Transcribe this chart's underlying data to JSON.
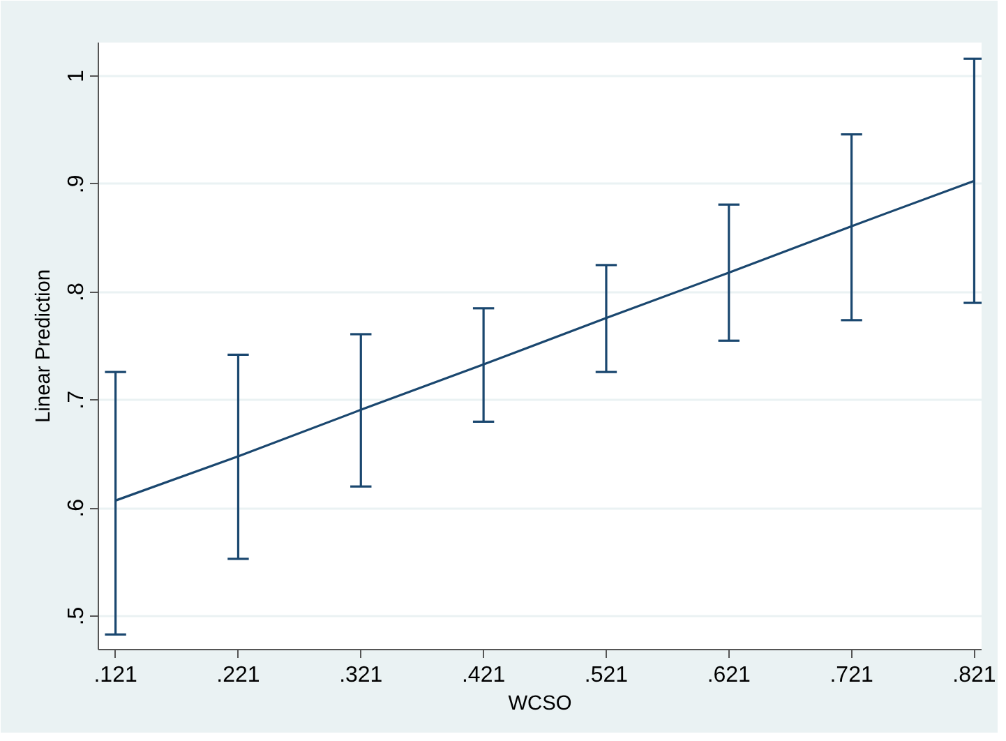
{
  "chart_data": {
    "type": "line",
    "xlabel": "WCSO",
    "ylabel": "Linear Prediction",
    "x": [
      0.121,
      0.221,
      0.321,
      0.421,
      0.521,
      0.621,
      0.721,
      0.821
    ],
    "series": [
      {
        "color": "#1a476f",
        "values": [
          0.607,
          0.648,
          0.691,
          0.733,
          0.776,
          0.818,
          0.861,
          0.903
        ],
        "errors": [
          [
            0.483,
            0.726
          ],
          [
            0.553,
            0.742
          ],
          [
            0.62,
            0.761
          ],
          [
            0.68,
            0.785
          ],
          [
            0.726,
            0.825
          ],
          [
            0.755,
            0.881
          ],
          [
            0.774,
            0.946
          ],
          [
            0.79,
            1.016
          ]
        ]
      }
    ],
    "marker": "none",
    "line_style": "solid",
    "grid": "y",
    "xlim": [
      0.107,
      0.827
    ],
    "ylim": [
      0.469,
      1.031
    ],
    "xticks": [
      {
        "value": 0.121,
        "label": ".121"
      },
      {
        "value": 0.221,
        "label": ".221"
      },
      {
        "value": 0.321,
        "label": ".321"
      },
      {
        "value": 0.421,
        "label": ".421"
      },
      {
        "value": 0.521,
        "label": ".521"
      },
      {
        "value": 0.621,
        "label": ".621"
      },
      {
        "value": 0.721,
        "label": ".721"
      },
      {
        "value": 0.821,
        "label": ".821"
      }
    ],
    "yticks": [
      {
        "value": 0.5,
        "label": ".5"
      },
      {
        "value": 0.6,
        "label": ".6"
      },
      {
        "value": 0.7,
        "label": ".7"
      },
      {
        "value": 0.8,
        "label": ".8"
      },
      {
        "value": 0.9,
        "label": ".9"
      },
      {
        "value": 1,
        "label": "1"
      }
    ]
  }
}
